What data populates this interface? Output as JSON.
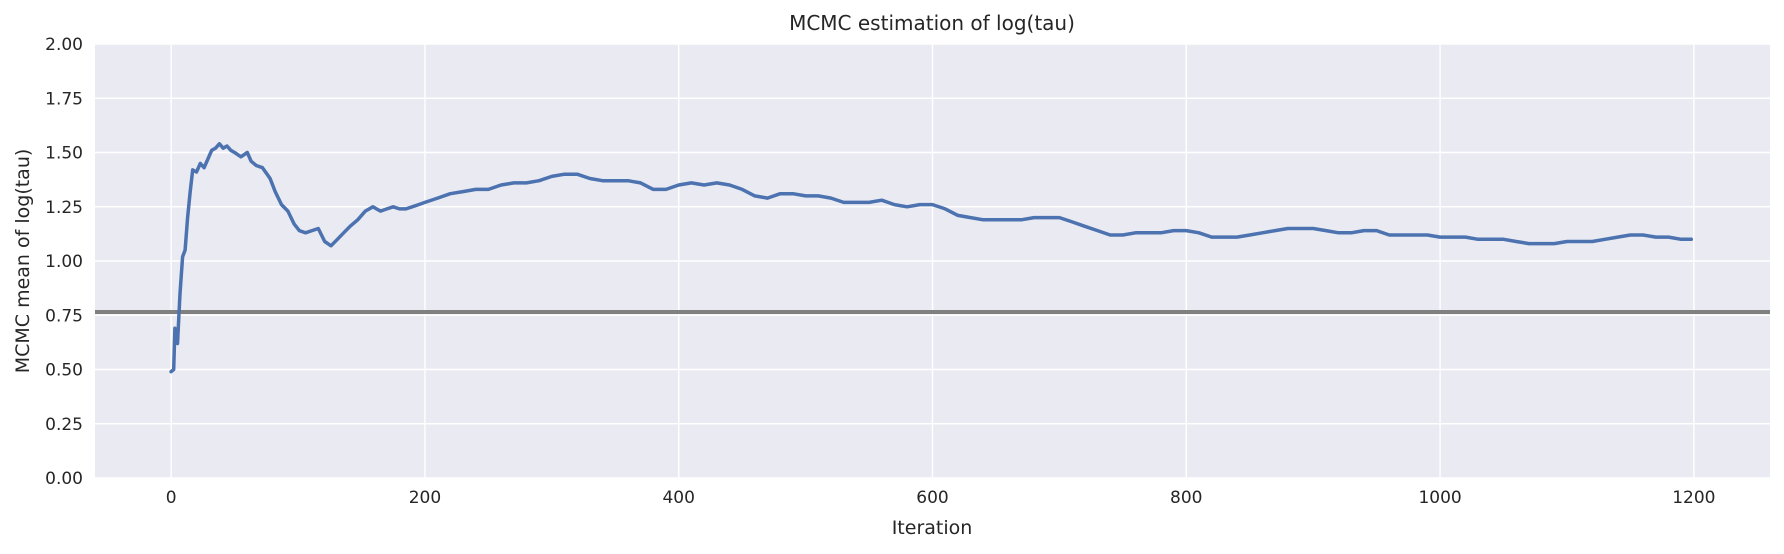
{
  "chart_data": {
    "type": "line",
    "title": "MCMC estimation of log(tau)",
    "xlabel": "Iteration",
    "ylabel": "MCMC mean of log(tau)",
    "xlim": [
      -60,
      1260
    ],
    "ylim": [
      0,
      2.0
    ],
    "xticks": [
      0,
      200,
      400,
      600,
      800,
      1000,
      1200
    ],
    "xtick_labels": [
      "0",
      "200",
      "400",
      "600",
      "800",
      "1000",
      "1200"
    ],
    "yticks": [
      0,
      0.25,
      0.5,
      0.75,
      1.0,
      1.25,
      1.5,
      1.75,
      2.0
    ],
    "ytick_labels": [
      "0.00",
      "0.25",
      "0.50",
      "0.75",
      "1.00",
      "1.25",
      "1.50",
      "1.75",
      "2.00"
    ],
    "grid": true,
    "colors": {
      "background": "#EAEAF2",
      "grid": "#FFFFFF",
      "series": "#4C72B0",
      "reference": "#808080"
    },
    "reference_line": {
      "orientation": "horizontal",
      "y": 0.765
    },
    "series": [
      {
        "x": [
          0,
          2,
          3,
          5,
          7,
          9,
          11,
          13,
          15,
          17,
          20,
          23,
          26,
          29,
          32,
          35,
          38,
          41,
          44,
          47,
          50,
          55,
          60,
          63,
          67,
          72,
          78,
          82,
          87,
          92,
          97,
          101,
          106,
          111,
          116,
          121,
          126,
          131,
          136,
          141,
          147,
          153,
          159,
          165,
          170,
          175,
          180,
          185,
          190,
          195,
          200,
          210,
          220,
          230,
          240,
          250,
          260,
          270,
          280,
          290,
          300,
          310,
          320,
          330,
          340,
          350,
          360,
          370,
          380,
          390,
          400,
          410,
          420,
          430,
          440,
          450,
          460,
          470,
          480,
          490,
          500,
          510,
          520,
          530,
          540,
          550,
          560,
          570,
          580,
          590,
          600,
          610,
          620,
          630,
          640,
          650,
          660,
          670,
          680,
          690,
          700,
          710,
          720,
          730,
          740,
          750,
          760,
          770,
          780,
          790,
          800,
          810,
          820,
          830,
          840,
          850,
          860,
          870,
          880,
          890,
          900,
          910,
          920,
          930,
          940,
          950,
          960,
          970,
          980,
          990,
          1000,
          1010,
          1020,
          1030,
          1040,
          1050,
          1060,
          1070,
          1080,
          1090,
          1100,
          1110,
          1120,
          1130,
          1140,
          1150,
          1160,
          1170,
          1180,
          1190,
          1198
        ],
        "y": [
          0.49,
          0.5,
          0.69,
          0.62,
          0.85,
          1.02,
          1.05,
          1.2,
          1.32,
          1.42,
          1.41,
          1.45,
          1.43,
          1.47,
          1.51,
          1.52,
          1.54,
          1.52,
          1.53,
          1.51,
          1.5,
          1.48,
          1.5,
          1.46,
          1.44,
          1.43,
          1.38,
          1.32,
          1.26,
          1.23,
          1.17,
          1.14,
          1.13,
          1.14,
          1.15,
          1.09,
          1.07,
          1.1,
          1.13,
          1.16,
          1.19,
          1.23,
          1.25,
          1.23,
          1.24,
          1.25,
          1.24,
          1.24,
          1.25,
          1.26,
          1.27,
          1.29,
          1.31,
          1.32,
          1.33,
          1.33,
          1.35,
          1.36,
          1.36,
          1.37,
          1.39,
          1.4,
          1.4,
          1.38,
          1.37,
          1.37,
          1.37,
          1.36,
          1.33,
          1.33,
          1.35,
          1.36,
          1.35,
          1.36,
          1.35,
          1.33,
          1.3,
          1.29,
          1.31,
          1.31,
          1.3,
          1.3,
          1.29,
          1.27,
          1.27,
          1.27,
          1.28,
          1.26,
          1.25,
          1.26,
          1.26,
          1.24,
          1.21,
          1.2,
          1.19,
          1.19,
          1.19,
          1.19,
          1.2,
          1.2,
          1.2,
          1.18,
          1.16,
          1.14,
          1.12,
          1.12,
          1.13,
          1.13,
          1.13,
          1.14,
          1.14,
          1.13,
          1.11,
          1.11,
          1.11,
          1.12,
          1.13,
          1.14,
          1.15,
          1.15,
          1.15,
          1.14,
          1.13,
          1.13,
          1.14,
          1.14,
          1.12,
          1.12,
          1.12,
          1.12,
          1.11,
          1.11,
          1.11,
          1.1,
          1.1,
          1.1,
          1.09,
          1.08,
          1.08,
          1.08,
          1.09,
          1.09,
          1.09,
          1.1,
          1.11,
          1.12,
          1.12,
          1.11,
          1.11,
          1.1,
          1.1
        ]
      }
    ]
  }
}
